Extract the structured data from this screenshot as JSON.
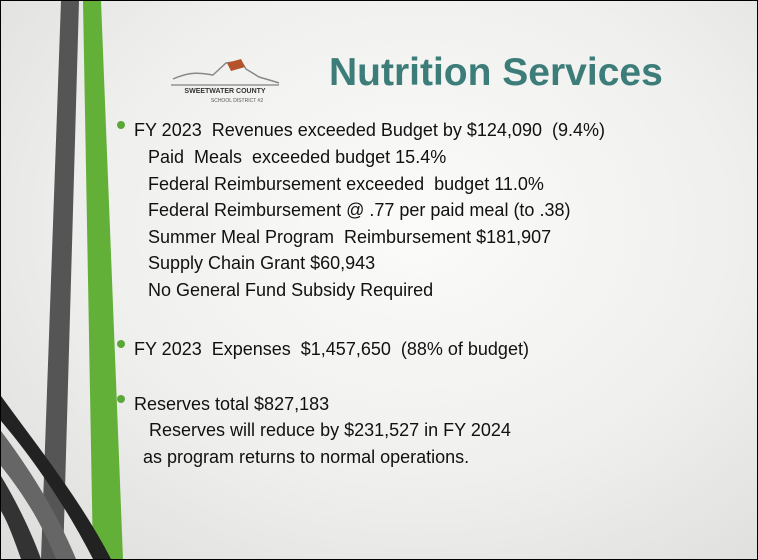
{
  "logo": {
    "name": "SWEETWATER COUNTY",
    "subtitle": "SCHOOL DISTRICT #2"
  },
  "title": "Nutrition Services",
  "bullets": [
    {
      "text": "FY 2023  Revenues exceeded Budget by $124,090  (9.4%)",
      "lines": [
        "Paid  Meals  exceeded budget 15.4%",
        "Federal Reimbursement exceeded  budget 11.0%",
        "Federal Reimbursement @ .77 per paid meal (to .38)",
        "Summer Meal Program  Reimbursement $181,907",
        "Supply Chain Grant $60,943",
        "No General Fund Subsidy Required"
      ]
    },
    {
      "text": "FY 2023  Expenses  $1,457,650  (88% of budget)",
      "lines": []
    },
    {
      "text": "Reserves total $827,183",
      "lines": [
        " Reserves will reduce by $231,527 in FY 2024",
        "as program returns to normal operations."
      ]
    }
  ]
}
